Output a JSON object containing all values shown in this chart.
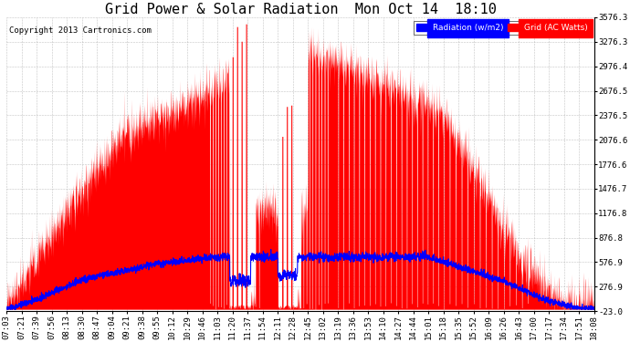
{
  "title": "Grid Power & Solar Radiation  Mon Oct 14  18:10",
  "copyright": "Copyright 2013 Cartronics.com",
  "legend_labels": [
    "Radiation (w/m2)",
    "Grid (AC Watts)"
  ],
  "legend_colors": [
    "#0000ff",
    "#ff0000"
  ],
  "yticks": [
    -23.0,
    276.9,
    576.9,
    876.8,
    1176.8,
    1476.7,
    1776.6,
    2076.6,
    2376.5,
    2676.5,
    2976.4,
    3276.3,
    3576.3
  ],
  "ymin": -23.0,
  "ymax": 3576.3,
  "xtick_labels": [
    "07:03",
    "07:21",
    "07:39",
    "07:56",
    "08:13",
    "08:30",
    "08:47",
    "09:04",
    "09:21",
    "09:38",
    "09:55",
    "10:12",
    "10:29",
    "10:46",
    "11:03",
    "11:20",
    "11:37",
    "11:54",
    "12:11",
    "12:28",
    "12:45",
    "13:02",
    "13:19",
    "13:36",
    "13:53",
    "14:10",
    "14:27",
    "14:44",
    "15:01",
    "15:18",
    "15:35",
    "15:52",
    "16:09",
    "16:26",
    "16:43",
    "17:00",
    "17:17",
    "17:34",
    "17:51",
    "18:08"
  ],
  "bg_color": "#ffffff",
  "plot_bg_color": "#ffffff",
  "grid_color": "#aaaaaa",
  "red_color": "#ff0000",
  "blue_color": "#0000ff",
  "title_fontsize": 11,
  "tick_fontsize": 6.5,
  "copyright_fontsize": 6.5
}
